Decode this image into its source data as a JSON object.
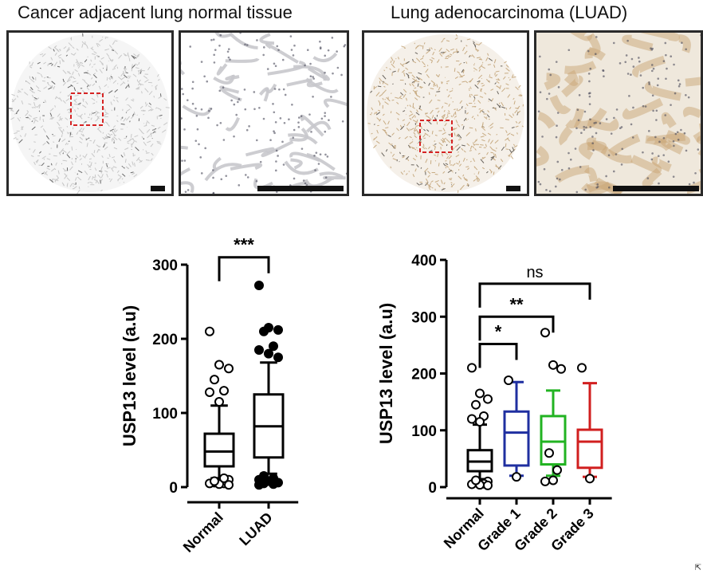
{
  "titles": {
    "normal": "Cancer adjacent lung normal tissue",
    "luad": "Lung adenocarcinoma (LUAD)"
  },
  "colors": {
    "black": "#000000",
    "blue": "#1f2fa0",
    "green": "#22b322",
    "red": "#d11f1f",
    "roi": "#d62424",
    "normal_tissue": "#c9c9c9",
    "luad_tissue": "#c9ad84"
  },
  "chart_data": [
    {
      "type": "box",
      "ylabel": "USP13 level (a.u)",
      "ylim": [
        0,
        300
      ],
      "yticks": [
        "0",
        "100",
        "200",
        "300"
      ],
      "categories": [
        "Normal",
        "LUAD"
      ],
      "boxes": [
        {
          "name": "Normal",
          "color": "#000000",
          "whisker_low": 12,
          "q1": 28,
          "median": 48,
          "q3": 72,
          "whisker_high": 110,
          "marker": "open",
          "outliers": [
            210,
            165,
            160,
            145,
            130,
            128,
            115,
            10,
            6,
            5,
            5,
            4,
            3,
            8,
            12
          ]
        },
        {
          "name": "LUAD",
          "color": "#000000",
          "whisker_low": 18,
          "q1": 40,
          "median": 82,
          "q3": 125,
          "whisker_high": 168,
          "marker": "filled",
          "outliers": [
            272,
            215,
            212,
            210,
            190,
            185,
            180,
            175,
            15,
            12,
            10,
            8,
            6,
            5,
            4,
            3
          ]
        }
      ],
      "significance": [
        {
          "label": "***",
          "from": 0,
          "to": 1,
          "y": 310
        }
      ]
    },
    {
      "type": "box",
      "ylabel": "USP13 level (a.u)",
      "ylim": [
        0,
        400
      ],
      "yticks": [
        "0",
        "100",
        "200",
        "300",
        "400"
      ],
      "categories": [
        "Normal",
        "Grade 1",
        "Grade 2",
        "Grade 3"
      ],
      "boxes": [
        {
          "name": "Normal",
          "color": "#000000",
          "whisker_low": 14,
          "q1": 28,
          "median": 45,
          "q3": 65,
          "whisker_high": 110,
          "marker": "open",
          "outliers": [
            210,
            165,
            155,
            145,
            125,
            120,
            115,
            10,
            8,
            6,
            5,
            4,
            3,
            12
          ]
        },
        {
          "name": "Grade 1",
          "color": "#1f2fa0",
          "whisker_low": 20,
          "q1": 38,
          "median": 96,
          "q3": 133,
          "whisker_high": 185,
          "marker": "open",
          "outliers": [
            188,
            18
          ]
        },
        {
          "name": "Grade 2",
          "color": "#22b322",
          "whisker_low": 20,
          "q1": 40,
          "median": 80,
          "q3": 125,
          "whisker_high": 170,
          "marker": "open",
          "outliers": [
            272,
            215,
            208,
            60,
            30,
            10,
            12
          ]
        },
        {
          "name": "Grade 3",
          "color": "#d11f1f",
          "whisker_low": 18,
          "q1": 34,
          "median": 80,
          "q3": 101,
          "whisker_high": 183,
          "marker": "open",
          "outliers": [
            210,
            15
          ]
        }
      ],
      "significance": [
        {
          "label": "*",
          "from": 0,
          "to": 1,
          "y": 252
        },
        {
          "label": "**",
          "from": 0,
          "to": 2,
          "y": 300
        },
        {
          "label": "ns",
          "from": 0,
          "to": 3,
          "y": 358
        }
      ]
    }
  ]
}
